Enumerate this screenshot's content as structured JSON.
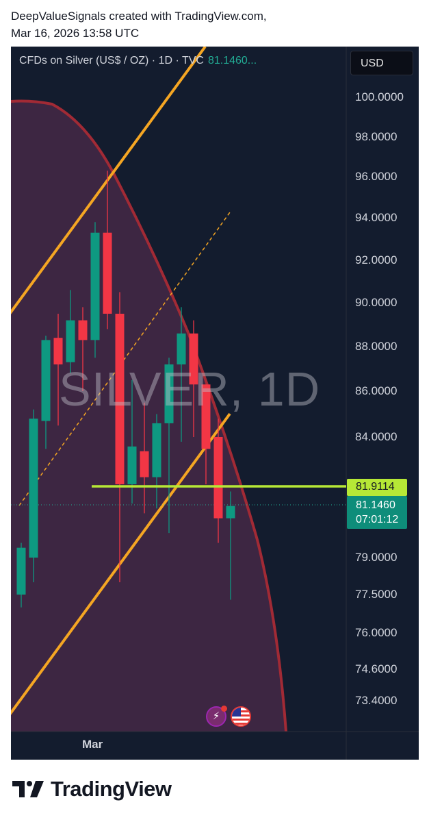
{
  "header": {
    "line1": "DeepValueSignals created with TradingView.com,",
    "line2": "Mar 16, 2026 13:58 UTC"
  },
  "legend": {
    "symbol": "CFDs on Silver (US$ / OZ) · 1D · TVC",
    "last_price": "81.1460..."
  },
  "currency_button": "USD",
  "watermark": "SILVER, 1D",
  "footer": {
    "brand": "TradingView"
  },
  "colors": {
    "background": "#131c2e",
    "up": "#0e9981",
    "down": "#f23645",
    "channel": "#f5a623",
    "arc": "#a12a35",
    "support": "#b6e836"
  },
  "chart_data": {
    "type": "candlestick",
    "symbol": "SILVER",
    "interval": "1D",
    "y_ticks": [
      "100.0000",
      "98.0000",
      "96.0000",
      "94.0000",
      "92.0000",
      "90.0000",
      "88.0000",
      "86.0000",
      "84.0000",
      "79.0000",
      "77.5000",
      "76.0000",
      "74.6000",
      "73.4000"
    ],
    "x_ticks": [
      "Mar"
    ],
    "price_labels": {
      "horizontal_line": "81.9114",
      "last_price": "81.1460",
      "countdown": "07:01:12"
    },
    "candles": [
      {
        "o": 77.5,
        "h": 79.6,
        "l": 77.0,
        "c": 79.4,
        "dir": "up"
      },
      {
        "o": 79.0,
        "h": 85.2,
        "l": 78.0,
        "c": 84.8,
        "dir": "up"
      },
      {
        "o": 84.7,
        "h": 88.5,
        "l": 83.5,
        "c": 88.3,
        "dir": "up"
      },
      {
        "o": 88.4,
        "h": 89.5,
        "l": 84.5,
        "c": 87.2,
        "dir": "down"
      },
      {
        "o": 87.3,
        "h": 90.6,
        "l": 86.8,
        "c": 89.2,
        "dir": "up"
      },
      {
        "o": 89.2,
        "h": 89.8,
        "l": 86.0,
        "c": 88.3,
        "dir": "down"
      },
      {
        "o": 88.3,
        "h": 93.8,
        "l": 87.5,
        "c": 93.3,
        "dir": "up"
      },
      {
        "o": 93.3,
        "h": 96.3,
        "l": 88.8,
        "c": 89.5,
        "dir": "down"
      },
      {
        "o": 89.5,
        "h": 90.5,
        "l": 78.0,
        "c": 82.0,
        "dir": "down"
      },
      {
        "o": 82.0,
        "h": 86.5,
        "l": 81.2,
        "c": 83.6,
        "dir": "up"
      },
      {
        "o": 83.4,
        "h": 85.5,
        "l": 80.8,
        "c": 82.3,
        "dir": "down"
      },
      {
        "o": 82.3,
        "h": 85.0,
        "l": 81.0,
        "c": 84.6,
        "dir": "up"
      },
      {
        "o": 84.6,
        "h": 87.5,
        "l": 80.0,
        "c": 87.2,
        "dir": "up"
      },
      {
        "o": 87.2,
        "h": 89.8,
        "l": 83.8,
        "c": 88.6,
        "dir": "up"
      },
      {
        "o": 88.6,
        "h": 89.2,
        "l": 84.0,
        "c": 86.3,
        "dir": "down"
      },
      {
        "o": 86.3,
        "h": 86.3,
        "l": 82.0,
        "c": 83.5,
        "dir": "down"
      },
      {
        "o": 84.0,
        "h": 84.8,
        "l": 79.6,
        "c": 80.6,
        "dir": "down"
      },
      {
        "o": 80.6,
        "h": 81.7,
        "l": 77.3,
        "c": 81.1,
        "dir": "up"
      }
    ],
    "annotations": {
      "horizontal_line": 81.9114,
      "dashed_line": "median of rising channel",
      "arc": "parabolic curve shaded",
      "channel": "rising parallel channel"
    }
  }
}
